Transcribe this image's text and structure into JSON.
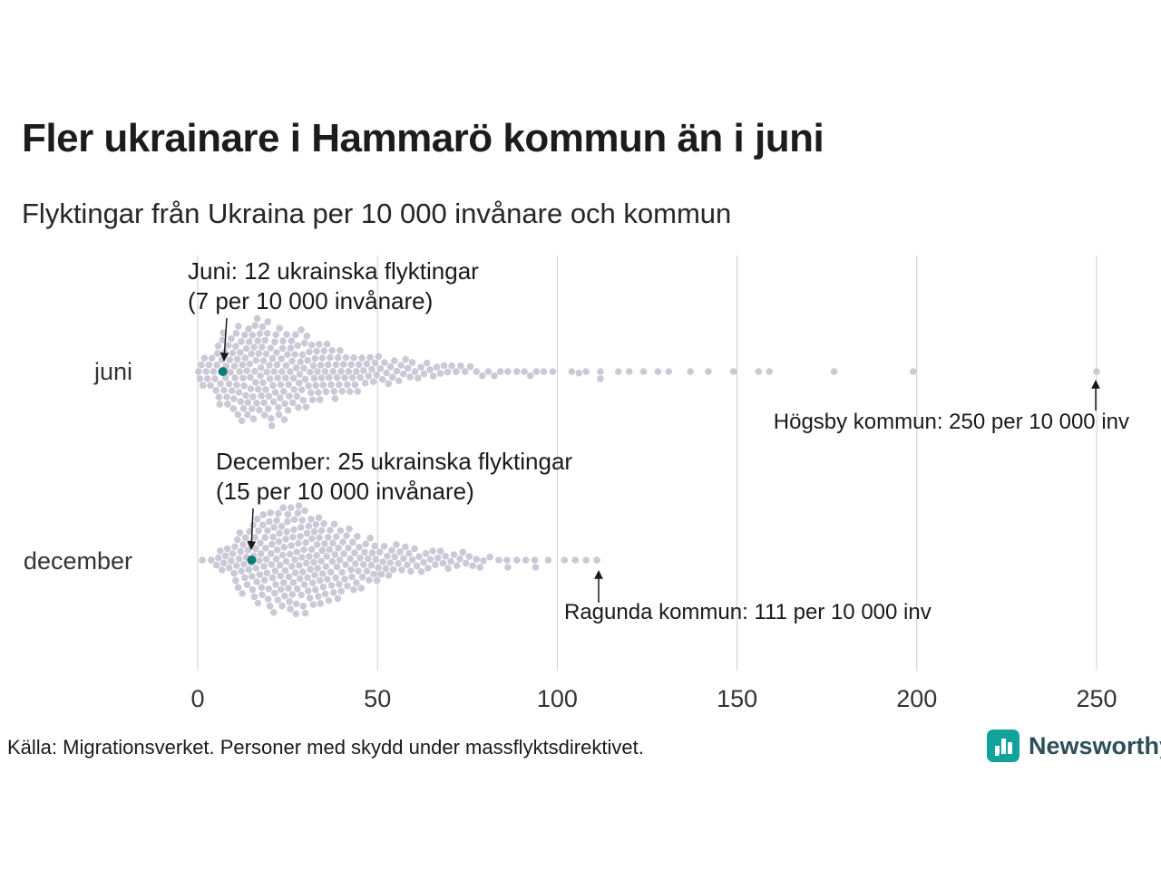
{
  "page": {
    "title": "Fler ukrainare i Hammarö kommun än i juni",
    "subtitle": "Flyktingar från Ukraina per 10 000 invånare och kommun",
    "source": "Källa: Migrationsverket. Personer med skydd under massflyktsdirektivet.",
    "brand": "Newsworthy"
  },
  "colors": {
    "dot": "#c7c4d2",
    "highlight": "#0c7f72",
    "grid": "#cccccc",
    "brand_teal": "#11a29c",
    "brand_text": "#2d4f5a",
    "text": "#1a1a1a"
  },
  "chart_data": {
    "type": "beeswarm",
    "title": "Fler ukrainare i Hammarö kommun än i juni",
    "subtitle": "Flyktingar från Ukraina per 10 000 invånare och kommun",
    "xlabel": "",
    "ylabel": "",
    "xlim": [
      0,
      250
    ],
    "x_ticks": [
      0,
      50,
      100,
      150,
      200,
      250
    ],
    "grid": "vertical",
    "rows": [
      {
        "label": "juni",
        "highlight_value": 7,
        "annotation": [
          "Juni: 12 ukrainska flyktingar",
          "(7 per 10 000 invånare)"
        ],
        "outlier_label": "Högsby kommun: 250 per 10 000 inv",
        "outlier_value": 250,
        "bin_width": 5,
        "bin_counts": [
          12,
          25,
          32,
          34,
          30,
          26,
          22,
          18,
          14,
          11,
          9,
          8,
          6,
          5,
          4,
          3,
          3,
          2,
          3,
          2
        ],
        "tail_values": [
          104,
          106,
          108,
          112,
          112,
          117,
          120,
          124,
          128,
          131,
          137,
          142,
          149,
          156,
          159,
          177,
          199,
          250
        ]
      },
      {
        "label": "december",
        "highlight_value": 15,
        "annotation": [
          "December: 25 ukrainska flyktingar",
          "(15 per 10 000 invånare)"
        ],
        "outlier_label": "Ragunda kommun: 111 per 10 000 inv",
        "outlier_value": 111,
        "bin_width": 5,
        "bin_counts": [
          2,
          10,
          22,
          30,
          34,
          36,
          32,
          26,
          20,
          16,
          12,
          10,
          8,
          7,
          6,
          5,
          2,
          2,
          2,
          1
        ],
        "tail_values": [
          86,
          94,
          102,
          105,
          108,
          111
        ]
      }
    ]
  }
}
